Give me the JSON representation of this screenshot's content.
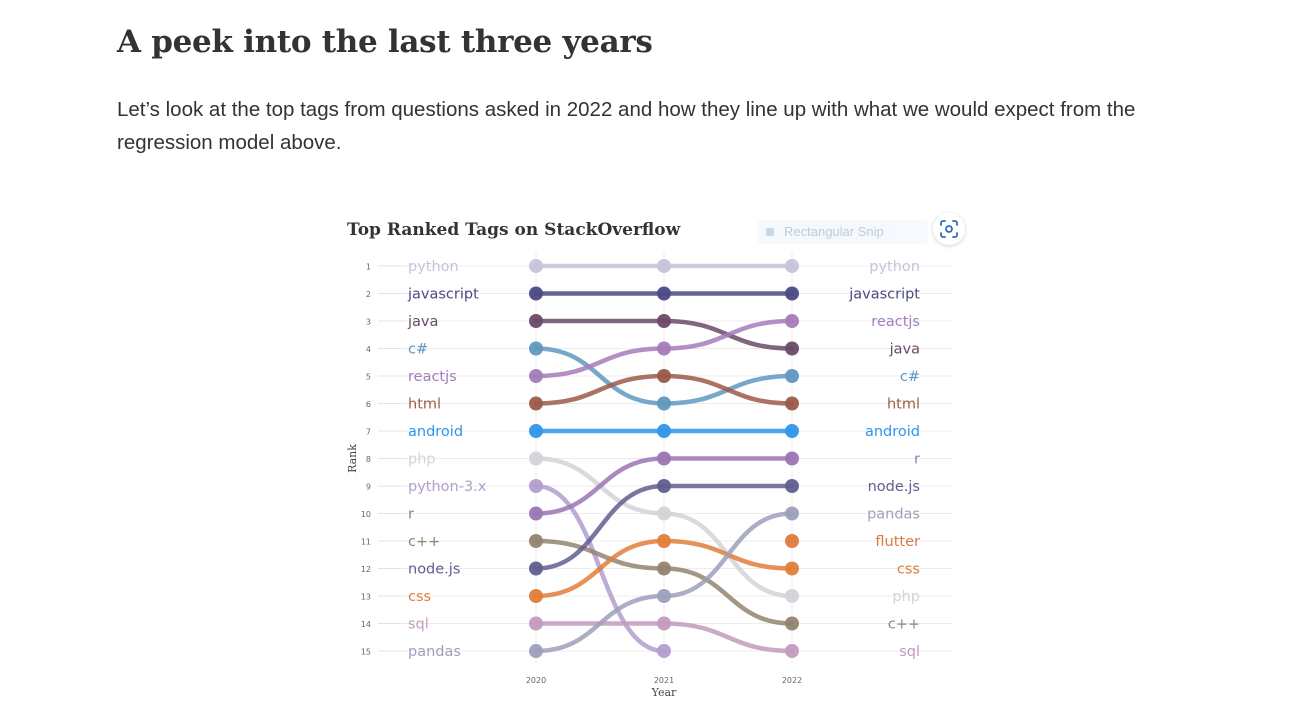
{
  "article": {
    "heading": "A peek into the last three years",
    "paragraph": "Let’s look at the top tags from questions asked in 2022 and how they line up with what we would expect from the regression model above."
  },
  "snip_overlay": {
    "label": "Rectangular Snip"
  },
  "chart_data": {
    "type": "line",
    "subtype": "bump",
    "title": "Top Ranked Tags on StackOverflow",
    "xlabel": "Year",
    "ylabel": "Rank",
    "x": [
      2020,
      2021,
      2022
    ],
    "ranks": [
      1,
      2,
      3,
      4,
      5,
      6,
      7,
      8,
      9,
      10,
      11,
      12,
      13,
      14,
      15
    ],
    "ylim": [
      1,
      15
    ],
    "y_reversed": true,
    "grid": true,
    "legend": "direct labels left (2020 order) and right (2022 order)",
    "series": [
      {
        "name": "python",
        "color": "#c9c3da",
        "values": [
          1,
          1,
          1
        ]
      },
      {
        "name": "javascript",
        "color": "#4a4a85",
        "values": [
          2,
          2,
          2
        ]
      },
      {
        "name": "java",
        "color": "#6a4a68",
        "values": [
          3,
          3,
          4
        ]
      },
      {
        "name": "c#",
        "color": "#5f98bf",
        "values": [
          4,
          6,
          5
        ]
      },
      {
        "name": "reactjs",
        "color": "#a47cbb",
        "values": [
          5,
          4,
          3
        ]
      },
      {
        "name": "html",
        "color": "#9c5b48",
        "values": [
          6,
          5,
          6
        ]
      },
      {
        "name": "android",
        "color": "#2f96ec",
        "values": [
          7,
          7,
          7
        ]
      },
      {
        "name": "php",
        "color": "#d3d3d8",
        "values": [
          8,
          10,
          13
        ]
      },
      {
        "name": "python-3.x",
        "color": "#b29ecf",
        "values": [
          9,
          15,
          null
        ]
      },
      {
        "name": "r",
        "color": "#9a76b5",
        "values": [
          10,
          8,
          8
        ]
      },
      {
        "name": "c++",
        "color": "#928470",
        "values": [
          11,
          12,
          14
        ]
      },
      {
        "name": "node.js",
        "color": "#5f5f90",
        "values": [
          12,
          9,
          9
        ]
      },
      {
        "name": "css",
        "color": "#e07e3a",
        "values": [
          13,
          11,
          12
        ]
      },
      {
        "name": "sql",
        "color": "#c39bbd",
        "values": [
          14,
          14,
          15
        ]
      },
      {
        "name": "pandas",
        "color": "#9ea0bb",
        "values": [
          15,
          13,
          10
        ]
      },
      {
        "name": "flutter",
        "color": "#df7a3f",
        "values": [
          null,
          null,
          11
        ]
      }
    ],
    "left_labels": [
      "python",
      "javascript",
      "java",
      "c#",
      "reactjs",
      "html",
      "android",
      "php",
      "python-3.x",
      "r",
      "c++",
      "node.js",
      "css",
      "sql",
      "pandas"
    ],
    "right_labels": [
      "python",
      "javascript",
      "reactjs",
      "java",
      "c#",
      "html",
      "android",
      "r",
      "node.js",
      "pandas",
      "flutter",
      "css",
      "php",
      "c++",
      "sql"
    ]
  }
}
